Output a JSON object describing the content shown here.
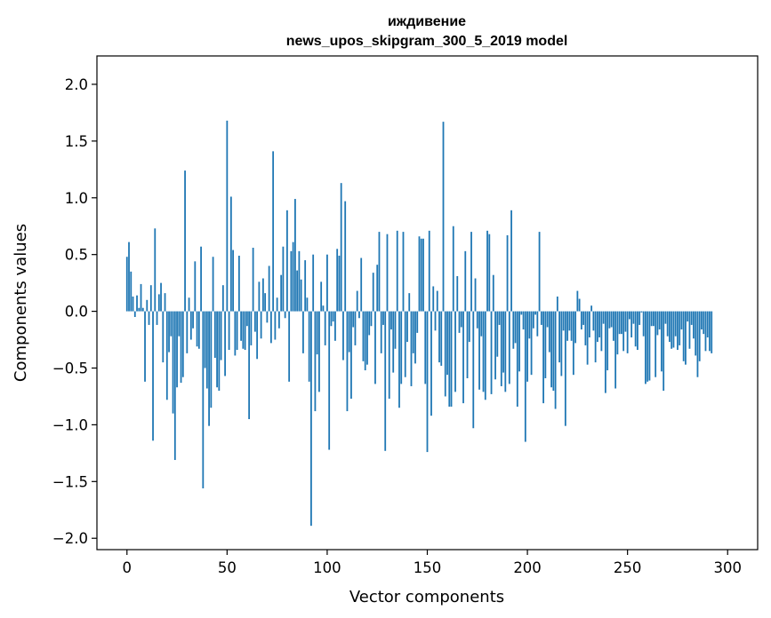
{
  "chart_data": {
    "type": "bar",
    "title": "иждивение",
    "subtitle": "news_upos_skipgram_300_5_2019 model",
    "xlabel": "Vector components",
    "ylabel": "Components values",
    "xlim": [
      -15,
      315
    ],
    "ylim": [
      -2.1,
      2.25
    ],
    "xticks": [
      0,
      50,
      100,
      150,
      200,
      250,
      300
    ],
    "yticks": [
      2.0,
      1.5,
      1.0,
      0.5,
      0.0,
      -0.5,
      -1.0,
      -1.5,
      -2.0
    ],
    "ytick_labels": [
      "2.0",
      "1.5",
      "1.0",
      "0.5",
      "0.0",
      "−0.5",
      "−1.0",
      "−1.5",
      "−2.0"
    ],
    "xtick_labels": [
      "0",
      "50",
      "100",
      "150",
      "200",
      "250",
      "300"
    ],
    "bar_color": "#1f77b4",
    "x": "0..299",
    "values": [
      0.48,
      0.61,
      0.35,
      0.13,
      -0.05,
      0.14,
      0.03,
      0.24,
      0.03,
      -0.62,
      0.1,
      -0.12,
      0.23,
      -1.14,
      0.73,
      -0.12,
      0.15,
      0.25,
      -0.45,
      0.16,
      -0.78,
      -0.36,
      -0.22,
      -0.9,
      -1.31,
      -0.67,
      -0.22,
      -0.63,
      -0.58,
      1.24,
      -0.37,
      0.12,
      -0.25,
      -0.15,
      0.44,
      -0.31,
      -0.33,
      0.57,
      -1.56,
      -0.5,
      -0.68,
      -1.01,
      -0.85,
      0.48,
      -0.41,
      -0.67,
      -0.7,
      -0.43,
      0.23,
      -0.57,
      1.68,
      -0.34,
      1.01,
      0.54,
      -0.39,
      -0.34,
      0.49,
      -0.26,
      -0.33,
      -0.34,
      -0.13,
      -0.95,
      -0.3,
      0.56,
      -0.18,
      -0.42,
      0.26,
      -0.24,
      0.29,
      0.16,
      -0.1,
      0.4,
      -0.28,
      1.41,
      -0.25,
      0.12,
      -0.15,
      0.32,
      0.57,
      -0.06,
      0.89,
      -0.62,
      0.53,
      0.61,
      0.99,
      0.36,
      0.53,
      0.28,
      -0.37,
      0.45,
      0.12,
      -0.62,
      -1.89,
      0.5,
      -0.88,
      -0.38,
      -0.71,
      0.26,
      0.05,
      -0.3,
      0.5,
      -1.22,
      -0.13,
      -0.09,
      -0.26,
      0.55,
      0.49,
      1.13,
      -0.43,
      0.97,
      -0.88,
      -0.36,
      -0.77,
      -0.14,
      -0.3,
      0.18,
      -0.06,
      0.47,
      -0.44,
      -0.52,
      -0.47,
      -0.21,
      -0.13,
      0.34,
      -0.64,
      0.41,
      0.7,
      -0.37,
      -0.12,
      -1.23,
      0.68,
      -0.77,
      -0.16,
      -0.54,
      -0.33,
      0.71,
      -0.85,
      -0.64,
      0.7,
      -0.58,
      -0.27,
      0.16,
      -0.66,
      -0.37,
      -0.46,
      -0.19,
      0.66,
      0.64,
      0.64,
      -0.64,
      -1.24,
      0.71,
      -0.92,
      0.22,
      -0.17,
      0.18,
      -0.45,
      -0.48,
      1.67,
      -0.75,
      -0.56,
      -0.84,
      -0.84,
      0.75,
      -0.71,
      0.31,
      -0.19,
      -0.14,
      -0.81,
      0.53,
      -0.59,
      -0.27,
      0.7,
      -1.03,
      0.29,
      -0.15,
      -0.69,
      -0.22,
      -0.71,
      -0.78,
      0.71,
      0.68,
      -0.73,
      0.32,
      -0.6,
      -0.4,
      -0.12,
      -0.66,
      -0.54,
      -0.71,
      0.67,
      -0.64,
      0.89,
      -0.33,
      -0.28,
      -0.84,
      -0.53,
      -0.03,
      -0.16,
      -1.15,
      -0.62,
      -0.24,
      -0.56,
      -0.15,
      -0.03,
      -0.22,
      0.7,
      -0.12,
      -0.81,
      -0.59,
      -0.14,
      -0.36,
      -0.67,
      -0.7,
      -0.86,
      0.13,
      -0.45,
      -0.57,
      -0.17,
      -1.01,
      -0.26,
      -0.17,
      -0.26,
      -0.56,
      -0.28,
      0.18,
      0.11,
      -0.16,
      -0.12,
      -0.3,
      -0.47,
      -0.23,
      0.05,
      -0.17,
      -0.45,
      -0.27,
      -0.23,
      -0.35,
      -0.11,
      -0.72,
      -0.52,
      -0.15,
      -0.14,
      -0.26,
      -0.68,
      -0.38,
      -0.2,
      -0.2,
      -0.35,
      -0.18,
      -0.37,
      -0.07,
      -0.23,
      -0.11,
      -0.31,
      -0.34,
      -0.12,
      -0.01,
      -0.22,
      -0.64,
      -0.62,
      -0.61,
      -0.13,
      -0.13,
      -0.58,
      -0.21,
      -0.16,
      -0.53,
      -0.7,
      -0.11,
      -0.22,
      -0.27,
      -0.33,
      -0.32,
      -0.22,
      -0.34,
      -0.3,
      -0.16,
      -0.44,
      -0.47,
      -0.09,
      -0.33,
      -0.12,
      -0.24,
      -0.39,
      -0.58,
      -0.44,
      -0.16,
      -0.2,
      -0.35,
      -0.23,
      -0.35,
      -0.37
    ]
  }
}
